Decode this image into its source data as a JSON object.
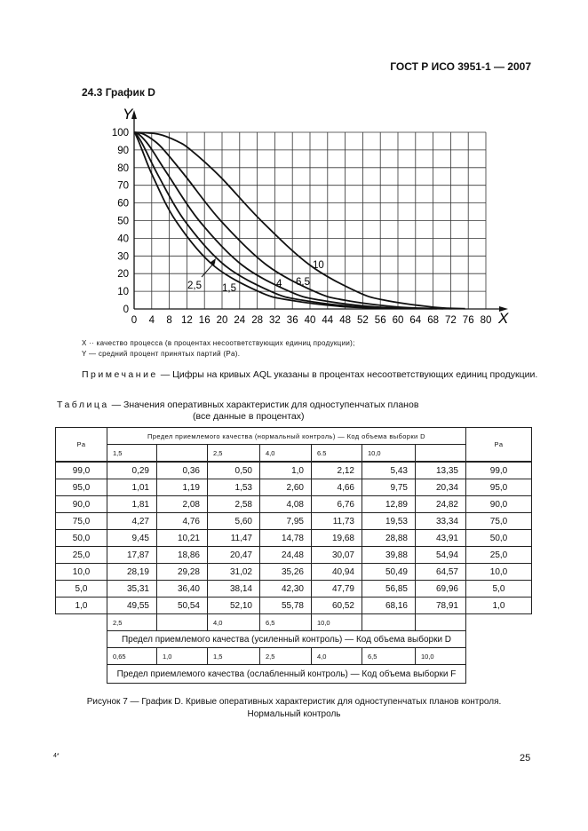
{
  "header": {
    "standard": "ГОСТ Р ИСО 3951-1 — 2007"
  },
  "section_title": "24.3 График D",
  "chart_data": {
    "type": "line",
    "xlabel": "X",
    "ylabel": "Y",
    "xlim": [
      0,
      80
    ],
    "ylim": [
      0,
      100
    ],
    "xticks": [
      "0",
      "4",
      "8",
      "12",
      "16",
      "20",
      "24",
      "28",
      "32",
      "36",
      "40",
      "44",
      "48",
      "52",
      "56",
      "60",
      "64",
      "68",
      "72",
      "76",
      "80"
    ],
    "yticks": [
      "0",
      "10",
      "20",
      "30",
      "40",
      "50",
      "60",
      "70",
      "80",
      "90",
      "100"
    ],
    "grid": true,
    "pa": [
      99.0,
      95.0,
      90.0,
      75.0,
      50.0,
      25.0,
      10.0,
      5.0,
      1.0
    ],
    "series": [
      {
        "name": "1,5",
        "x": [
          0.29,
          1.01,
          1.81,
          4.27,
          9.45,
          17.87,
          28.19,
          35.31,
          49.55
        ]
      },
      {
        "name": "2,5",
        "x": [
          0.5,
          1.53,
          2.58,
          5.6,
          11.47,
          20.47,
          31.02,
          38.14,
          52.1
        ]
      },
      {
        "name": "4",
        "x": [
          1.0,
          2.6,
          4.08,
          7.95,
          14.78,
          24.48,
          35.26,
          42.3,
          55.78
        ]
      },
      {
        "name": "6,5",
        "x": [
          2.12,
          4.66,
          6.76,
          11.73,
          19.68,
          30.07,
          40.94,
          47.79,
          60.52
        ]
      },
      {
        "name": "10",
        "x": [
          5.43,
          9.75,
          12.89,
          19.53,
          28.88,
          39.88,
          50.49,
          56.85,
          68.16
        ]
      }
    ]
  },
  "legend": {
    "x_desc": "X  ··  качество процесса (в процентах несоответствующих единиц продукции);",
    "y_desc": "Y —  средний процент принятых партий (Pa)."
  },
  "note": {
    "label": "Примечание",
    "text": " — Цифры на кривых AQL  указаны в процентах несоответствующих единиц продукции."
  },
  "table_caption": {
    "label": "Таблица",
    "line1": " — Значения оперативных характеристик для одноступенчатых планов",
    "line2": "(все данные в процентах)"
  },
  "table": {
    "pa_header": "Pa",
    "normal_header": "Предел приемлемого качества (нормальный контроль) — Код объема выборки D",
    "normal_aql": [
      "1,5",
      "",
      "2,5",
      "4,0",
      "6.5",
      "10,0",
      ""
    ],
    "rows": [
      [
        "99,0",
        "0,29",
        "0,36",
        "0,50",
        "1,0",
        "2,12",
        "5,43",
        "13,35",
        "99,0"
      ],
      [
        "95,0",
        "1,01",
        "1,19",
        "1,53",
        "2,60",
        "4,66",
        "9,75",
        "20,34",
        "95,0"
      ],
      [
        "90,0",
        "1,81",
        "2,08",
        "2,58",
        "4,08",
        "6,76",
        "12,89",
        "24,82",
        "90,0"
      ],
      [
        "75,0",
        "4,27",
        "4,76",
        "5,60",
        "7,95",
        "11,73",
        "19,53",
        "33,34",
        "75,0"
      ],
      [
        "50,0",
        "9,45",
        "10,21",
        "11,47",
        "14,78",
        "19,68",
        "28,88",
        "43,91",
        "50,0"
      ],
      [
        "25,0",
        "17,87",
        "18,86",
        "20,47",
        "24,48",
        "30,07",
        "39,88",
        "54,94",
        "25,0"
      ],
      [
        "10,0",
        "28,19",
        "29,28",
        "31,02",
        "35,26",
        "40,94",
        "50,49",
        "64,57",
        "10,0"
      ],
      [
        "5,0",
        "35,31",
        "36,40",
        "38,14",
        "42,30",
        "47,79",
        "56,85",
        "69,96",
        "5,0"
      ],
      [
        "1,0",
        "49,55",
        "50,54",
        "52,10",
        "55,78",
        "60,52",
        "68,16",
        "78,91",
        "1,0"
      ]
    ],
    "tightened_aql": [
      "2,5",
      "",
      "4,0",
      "6,5",
      "10,0",
      "",
      ""
    ],
    "tightened_header": "Предел приемлемого качества (усиленный контроль) — Код объема выборки D",
    "reduced_aql": [
      "0,65",
      "1,0",
      "1,5",
      "2,5",
      "4,0",
      "6,5",
      "10,0"
    ],
    "reduced_header": "Предел приемлемого качества (ослабленный контроль) — Код объема выборки F"
  },
  "figure_caption": {
    "line1": "Рисунок 7 — График D. Кривые оперативных характеристик для одноступенчатых планов контроля.",
    "line2": "Нормальный контроль"
  },
  "footer": {
    "mark": "4*",
    "page": "25"
  }
}
